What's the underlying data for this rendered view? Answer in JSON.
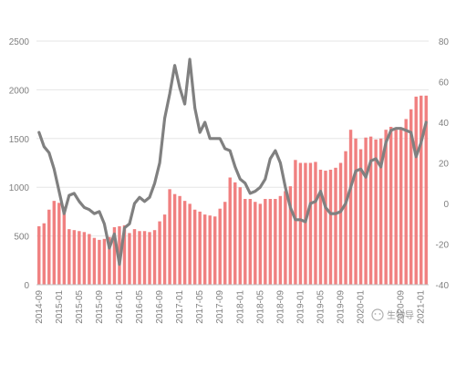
{
  "chart_data": {
    "type": "bar+line",
    "title": "",
    "xlabel": "",
    "ylabel": "",
    "y_left_ticks": [
      0,
      500,
      1000,
      1500,
      2000,
      2500
    ],
    "y_left_lim": [
      0,
      2500
    ],
    "y_right_ticks": [
      -40,
      -20,
      0,
      20,
      40,
      60,
      80
    ],
    "y_right_lim": [
      -40,
      80
    ],
    "grid": true,
    "legend": "none",
    "x_tick_labels": [
      "2014-09",
      "2015-01",
      "2015-05",
      "2015-09",
      "2016-01",
      "2016-05",
      "2016-09",
      "2017-01",
      "2017-05",
      "2017-09",
      "2018-01",
      "2018-05",
      "2018-09",
      "2019-01",
      "2019-05",
      "2019-09",
      "2020-01",
      "2020-09",
      "2021-01"
    ],
    "categories": [
      "2014-09",
      "2014-10",
      "2014-11",
      "2014-12",
      "2015-01",
      "2015-02",
      "2015-03",
      "2015-04",
      "2015-05",
      "2015-06",
      "2015-07",
      "2015-08",
      "2015-09",
      "2015-10",
      "2015-11",
      "2015-12",
      "2016-01",
      "2016-02",
      "2016-03",
      "2016-04",
      "2016-05",
      "2016-06",
      "2016-07",
      "2016-08",
      "2016-09",
      "2016-10",
      "2016-11",
      "2016-12",
      "2017-01",
      "2017-02",
      "2017-03",
      "2017-04",
      "2017-05",
      "2017-06",
      "2017-07",
      "2017-08",
      "2017-09",
      "2017-10",
      "2017-11",
      "2017-12",
      "2018-01",
      "2018-02",
      "2018-03",
      "2018-04",
      "2018-05",
      "2018-06",
      "2018-07",
      "2018-08",
      "2018-09",
      "2018-10",
      "2018-11",
      "2018-12",
      "2019-01",
      "2019-02",
      "2019-03",
      "2019-04",
      "2019-05",
      "2019-06",
      "2019-07",
      "2019-08",
      "2019-09",
      "2019-10",
      "2019-11",
      "2019-12",
      "2020-01",
      "2020-02",
      "2020-03",
      "2020-04",
      "2020-05",
      "2020-06",
      "2020-07",
      "2020-08",
      "2020-09",
      "2020-10",
      "2020-11",
      "2020-12",
      "2021-01",
      "2021-02"
    ],
    "series": [
      {
        "axis": "left",
        "kind": "bar",
        "color": "#f08080",
        "values": [
          600,
          630,
          770,
          860,
          840,
          800,
          570,
          560,
          550,
          540,
          520,
          480,
          460,
          470,
          490,
          590,
          600,
          610,
          530,
          570,
          550,
          550,
          540,
          560,
          650,
          720,
          980,
          930,
          910,
          860,
          830,
          770,
          750,
          720,
          710,
          700,
          780,
          850,
          1100,
          1050,
          1000,
          880,
          880,
          850,
          830,
          880,
          880,
          880,
          910,
          960,
          1010,
          1280,
          1250,
          1250,
          1250,
          1260,
          1180,
          1170,
          1180,
          1200,
          1250,
          1370,
          1590,
          1500,
          1390,
          1510,
          1520,
          1490,
          1500,
          1590,
          1620,
          1590,
          1600,
          1700,
          1800,
          1930,
          1940,
          1940
        ]
      },
      {
        "axis": "right",
        "kind": "line",
        "color": "#808080",
        "values": [
          35,
          28,
          25,
          17,
          6,
          -5,
          4,
          5,
          1,
          -2,
          -3,
          -5,
          -4,
          -10,
          -22,
          -15,
          -30,
          -12,
          -10,
          0,
          3,
          1,
          3,
          10,
          20,
          42,
          54,
          68,
          57,
          49,
          71,
          47,
          35,
          40,
          32,
          32,
          32,
          27,
          26,
          18,
          12,
          10,
          5,
          6,
          8,
          12,
          22,
          26,
          20,
          8,
          -2,
          -8,
          -8,
          -9,
          0,
          1,
          6,
          -2,
          -5,
          -5,
          -4,
          0,
          8,
          16,
          17,
          13,
          21,
          22,
          18,
          30,
          36,
          37,
          37,
          36,
          35,
          23,
          30,
          40
        ]
      }
    ]
  },
  "watermark": "生物导"
}
